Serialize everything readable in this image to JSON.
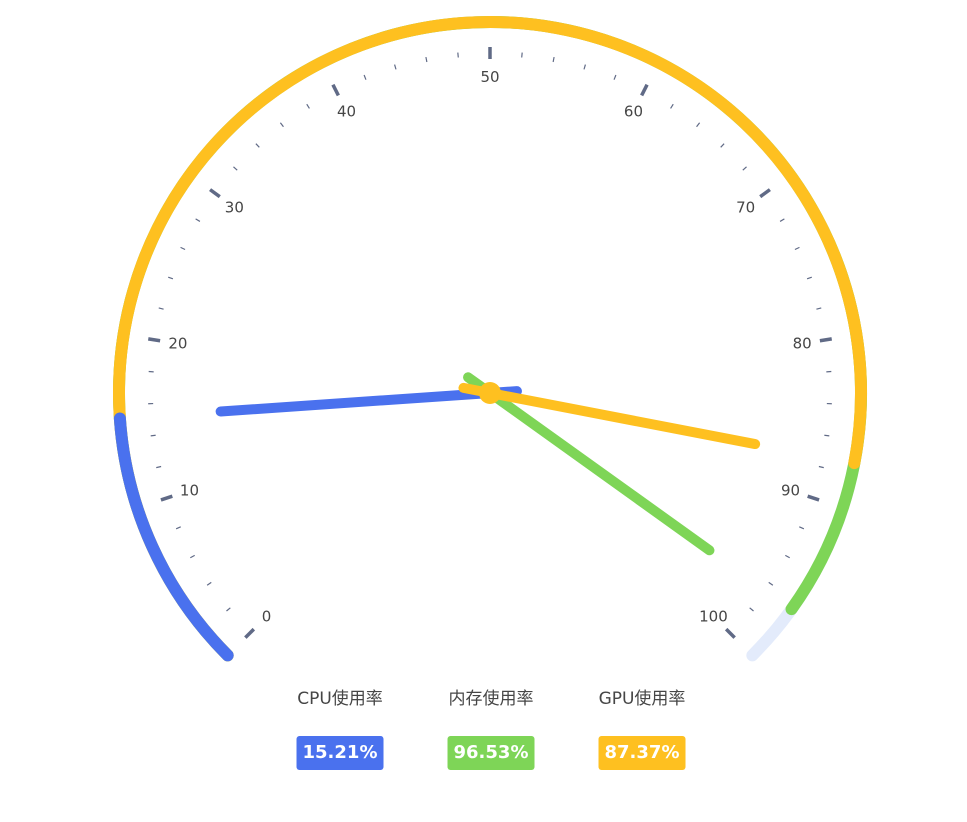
{
  "chart_data": {
    "type": "gauge",
    "min": 0,
    "max": 100,
    "tick_labels": [
      "0",
      "10",
      "20",
      "30",
      "40",
      "50",
      "60",
      "70",
      "80",
      "90",
      "100"
    ],
    "series": [
      {
        "name": "CPU使用率",
        "value": 15.21,
        "label": "15.21%",
        "color": "#4a71ee"
      },
      {
        "name": "内存使用率",
        "value": 96.53,
        "label": "96.53%",
        "color": "#7ed557"
      },
      {
        "name": "GPU使用率",
        "value": 87.37,
        "label": "87.37%",
        "color": "#fec020"
      }
    ],
    "track_color": "#e3ebfb",
    "tick_color": "#606a86"
  }
}
